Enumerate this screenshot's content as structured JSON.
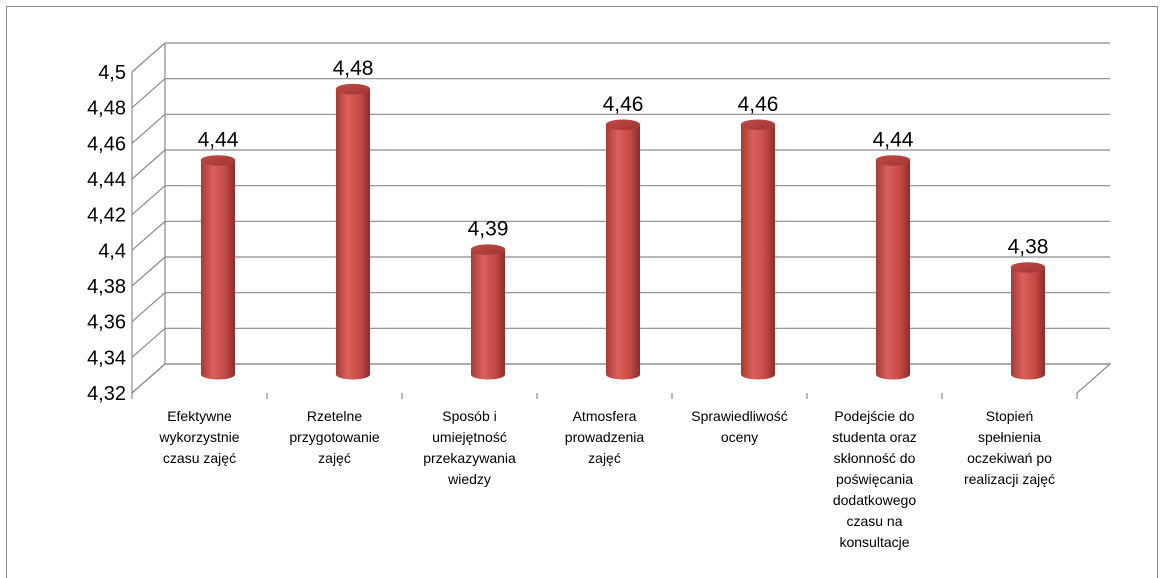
{
  "chart_data": {
    "type": "bar",
    "style": "3d-cylinder",
    "categories": [
      "Efektywne wykorzystnie czasu zajęć",
      "Rzetelne przygotowanie zajęć",
      "Sposób i umiejętność przekazywania wiedzy",
      "Atmosfera prowadzenia zajęć",
      "Sprawiedliwość oceny",
      "Podejście do studenta oraz skłonność do poświęcania dodatkowego czasu na konsultacje",
      "Stopień spełnienia oczekiwań po realizacji zajęć"
    ],
    "category_lines": [
      [
        "Efektywne",
        "wykorzystnie",
        "czasu zajęć"
      ],
      [
        "Rzetelne",
        "przygotowanie",
        "zajęć"
      ],
      [
        "Sposób i",
        "umiejętność",
        "przekazywania",
        "wiedzy"
      ],
      [
        "Atmosfera",
        "prowadzenia",
        "zajęć"
      ],
      [
        "Sprawiedliwość",
        "oceny"
      ],
      [
        "Podejście do",
        "studenta oraz",
        "skłonność do",
        "poświęcania",
        "dodatkowego",
        "czasu na",
        "konsultacje"
      ],
      [
        "Stopień",
        "spełnienia",
        "oczekiwań po",
        "realizacji zajęć"
      ]
    ],
    "values": [
      4.44,
      4.48,
      4.39,
      4.46,
      4.46,
      4.44,
      4.38
    ],
    "value_labels": [
      "4,44",
      "4,48",
      "4,39",
      "4,46",
      "4,46",
      "4,44",
      "4,38"
    ],
    "ylim": [
      4.32,
      4.5
    ],
    "yticks": [
      4.32,
      4.34,
      4.36,
      4.38,
      4.4,
      4.42,
      4.44,
      4.46,
      4.48,
      4.5
    ],
    "ytick_labels": [
      "4,32",
      "4,34",
      "4,36",
      "4,38",
      "4,4",
      "4,42",
      "4,44",
      "4,46",
      "4,48",
      "4,5"
    ],
    "title": "",
    "xlabel": "",
    "ylabel": "",
    "grid": true,
    "legend": "none",
    "bar_color": "#c0504d"
  }
}
